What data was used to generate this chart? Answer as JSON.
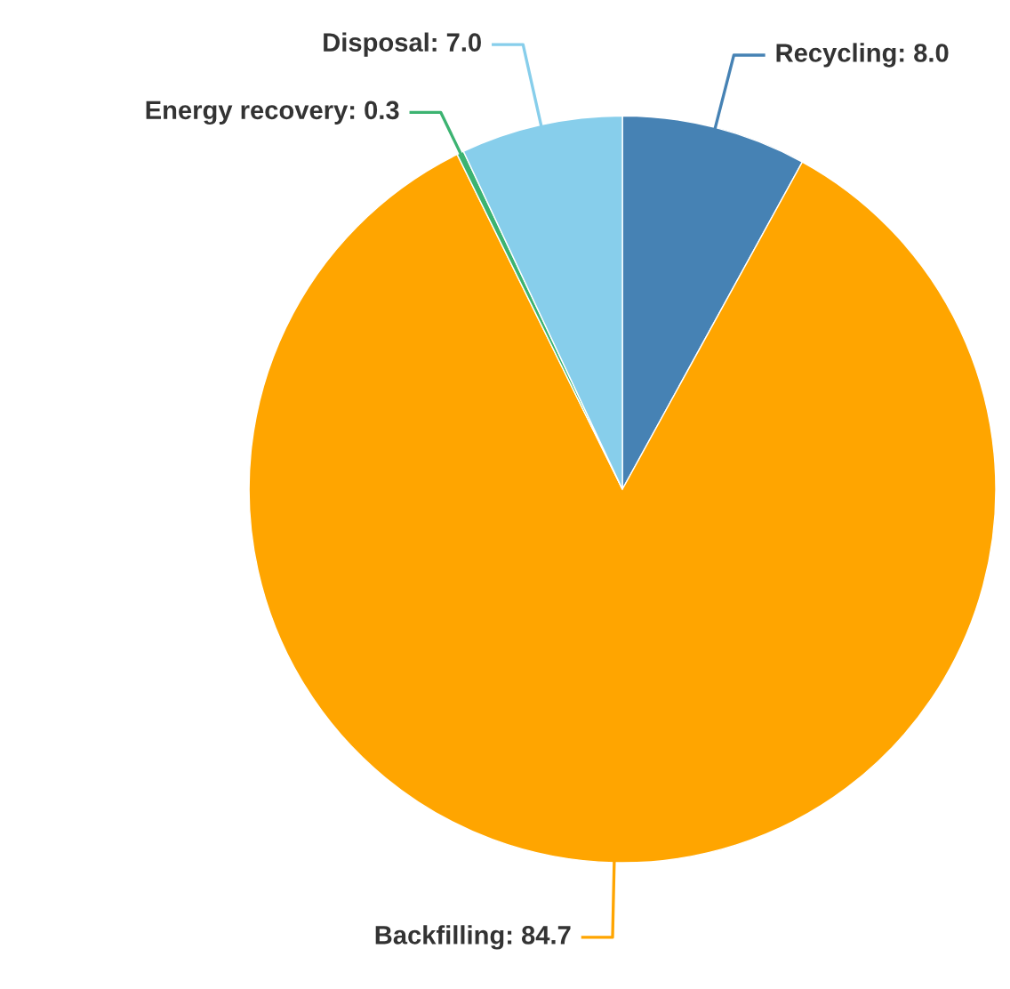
{
  "chart_data": {
    "type": "pie",
    "categories": [
      "Recycling",
      "Backfilling",
      "Energy recovery",
      "Disposal"
    ],
    "values": [
      8.0,
      84.7,
      0.3,
      7.0
    ],
    "value_labels": [
      "8.0",
      "84.7",
      "0.3",
      "7.0"
    ],
    "colors": [
      "#4682b4",
      "#ffa500",
      "#3cb371",
      "#87ceeb"
    ]
  }
}
